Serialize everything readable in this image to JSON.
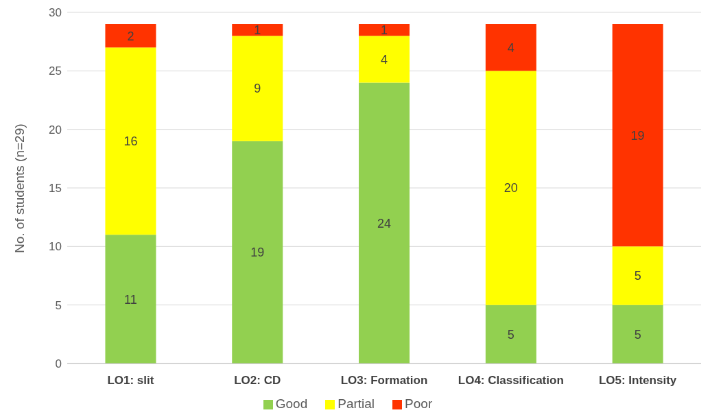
{
  "chart_data": {
    "type": "bar",
    "stacked": true,
    "ylabel": "No. of students (n=29)",
    "categories": [
      "LO1: slit",
      "LO2: CD",
      "LO3: Formation",
      "LO4: Classification",
      "LO5: Intensity"
    ],
    "series": [
      {
        "name": "Good",
        "color": "#92d050",
        "values": [
          11,
          19,
          24,
          5,
          5
        ]
      },
      {
        "name": "Partial",
        "color": "#ffff00",
        "values": [
          16,
          9,
          4,
          20,
          5
        ]
      },
      {
        "name": "Poor",
        "color": "#ff3300",
        "values": [
          2,
          1,
          1,
          4,
          19
        ]
      }
    ],
    "ylim": [
      0,
      30
    ],
    "yticks": [
      0,
      5,
      10,
      15,
      20,
      25,
      30
    ],
    "grid": "y",
    "legend": "bottom",
    "data_labels": true
  }
}
